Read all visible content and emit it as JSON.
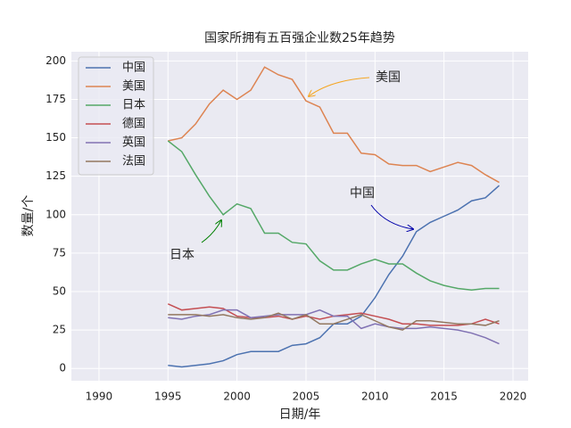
{
  "chart_data": {
    "type": "line",
    "title": "国家所拥有五百强企业数25年趋势",
    "x_label": "日期/年",
    "y_label": "数量/个",
    "x": [
      1995,
      1996,
      1997,
      1998,
      1999,
      2000,
      2001,
      2002,
      2003,
      2004,
      2005,
      2006,
      2007,
      2008,
      2009,
      2010,
      2011,
      2012,
      2013,
      2014,
      2015,
      2016,
      2017,
      2018,
      2019
    ],
    "series": [
      {
        "name": "中国",
        "color": "#4c72b0",
        "values": [
          2,
          1,
          2,
          3,
          5,
          9,
          11,
          11,
          11,
          15,
          16,
          20,
          29,
          29,
          34,
          46,
          61,
          73,
          89,
          95,
          99,
          103,
          109,
          111,
          119
        ]
      },
      {
        "name": "美国",
        "color": "#dd8452",
        "values": [
          148,
          150,
          159,
          172,
          181,
          175,
          181,
          196,
          191,
          188,
          174,
          170,
          153,
          153,
          140,
          139,
          133,
          132,
          132,
          128,
          131,
          134,
          132,
          126,
          121
        ]
      },
      {
        "name": "日本",
        "color": "#55a868",
        "values": [
          148,
          141,
          126,
          112,
          100,
          107,
          104,
          88,
          88,
          82,
          81,
          70,
          64,
          64,
          68,
          71,
          68,
          68,
          62,
          57,
          54,
          52,
          51,
          52,
          52
        ]
      },
      {
        "name": "德国",
        "color": "#c44e52",
        "values": [
          42,
          38,
          39,
          40,
          39,
          34,
          33,
          33,
          34,
          32,
          34,
          32,
          34,
          35,
          36,
          34,
          32,
          29,
          29,
          28,
          28,
          28,
          29,
          32,
          29
        ]
      },
      {
        "name": "英国",
        "color": "#8172b3",
        "values": [
          33,
          32,
          34,
          35,
          38,
          38,
          33,
          34,
          35,
          35,
          35,
          38,
          34,
          34,
          26,
          29,
          27,
          26,
          26,
          27,
          26,
          25,
          23,
          20,
          16
        ]
      },
      {
        "name": "法国",
        "color": "#937860",
        "values": [
          35,
          35,
          35,
          34,
          35,
          33,
          32,
          33,
          36,
          32,
          35,
          29,
          29,
          32,
          35,
          31,
          27,
          25,
          31,
          31,
          30,
          29,
          29,
          28,
          31
        ]
      }
    ],
    "xlim": [
      1988,
      2021.1
    ],
    "xticks": [
      1990,
      1995,
      2000,
      2005,
      2010,
      2015,
      2020
    ],
    "ylim": [
      -8,
      206
    ],
    "yticks": [
      0,
      25,
      50,
      75,
      100,
      125,
      150,
      175,
      200
    ],
    "grid": true,
    "legend": "upper-left",
    "annotations": [
      {
        "text": "美国",
        "color": "#f5a623"
      },
      {
        "text": "中国",
        "color": "#0000aa"
      },
      {
        "text": "日本",
        "color": "#008000"
      }
    ]
  }
}
